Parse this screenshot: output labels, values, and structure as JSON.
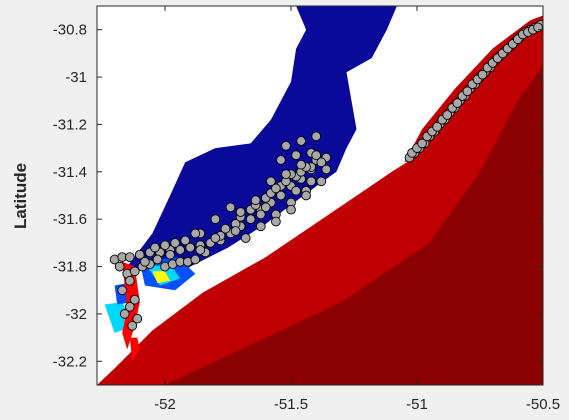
{
  "chart_data": {
    "type": "scatter",
    "title": "",
    "xlabel": "",
    "ylabel": "Latitude",
    "xlim": [
      -52.27,
      -50.5
    ],
    "ylim": [
      -32.3,
      -30.7
    ],
    "grid": false,
    "x_ticks": [
      -52,
      -51.5,
      -51,
      -50.5
    ],
    "y_ticks": [
      -30.8,
      -31,
      -31.2,
      -31.4,
      -31.6,
      -31.8,
      -32,
      -32.2
    ],
    "x_tick_labels": [
      "-52",
      "-51.5",
      "-51",
      "-50.5"
    ],
    "y_tick_labels": [
      "-30.8",
      "-31",
      "-31.2",
      "-31.4",
      "-31.6",
      "-31.8",
      "-32",
      "-32.2"
    ],
    "layers": {
      "ocean_high_colour": "#c00000",
      "ocean_deep_colour": "#8b0000",
      "plume_colour": "#0a0a9a",
      "estuary_colours": [
        "#ff0000",
        "#ffff00",
        "#00d8ff",
        "#0050ff"
      ]
    },
    "coast_line": {
      "x": [
        -52.27,
        -52.2,
        -52.05,
        -51.85,
        -51.6,
        -51.35,
        -51.1,
        -50.95,
        -50.8,
        -50.62,
        -50.5
      ],
      "y": [
        -32.3,
        -32.23,
        -32.07,
        -31.91,
        -31.76,
        -31.58,
        -31.4,
        -31.3,
        -31.13,
        -30.92,
        -30.77
      ]
    },
    "series": [
      {
        "marker": "circle",
        "marker_color": "#a8a8a8",
        "edge_color": "#000000",
        "x": [
          -52.2,
          -52.17,
          -52.14,
          -52.1,
          -52.06,
          -52.02,
          -51.98,
          -51.94,
          -51.9,
          -51.86,
          -51.82,
          -51.78,
          -51.74,
          -51.7,
          -51.66,
          -51.62,
          -51.58,
          -51.54,
          -51.5,
          -51.46,
          -51.42,
          -51.38,
          -51.84,
          -51.78,
          -51.72,
          -51.66,
          -51.6,
          -51.54,
          -51.48,
          -51.42,
          -51.76,
          -51.7,
          -51.64,
          -51.58,
          -51.52,
          -51.46,
          -51.4,
          -51.68,
          -51.62,
          -51.56,
          -51.5,
          -51.44,
          -51.38,
          -52.18,
          -52.15,
          -52.12,
          -52.09,
          -52.06,
          -52.03,
          -52.0,
          -51.97,
          -51.94,
          -51.91,
          -51.88,
          -52.17,
          -52.14,
          -52.11,
          -51.54,
          -51.48,
          -51.42,
          -51.36,
          -51.5,
          -51.44,
          -51.38,
          -51.52,
          -51.46,
          -51.4,
          -51.8,
          -51.74,
          -51.86,
          -51.92,
          -51.96,
          -52.0,
          -52.04,
          -51.72,
          -51.66,
          -51.6,
          -51.56,
          -51.5,
          -51.44,
          -51.58,
          -51.52,
          -51.46,
          -51.4,
          -52.14,
          -52.12,
          -52.16,
          -51.98,
          -51.88,
          -51.62,
          -51.56,
          -52.08,
          -52.13,
          -51.86,
          -51.8,
          -51.7,
          -51.64,
          -51.48,
          -51.42,
          -51.36
        ],
        "y": [
          -31.77,
          -31.76,
          -31.76,
          -31.75,
          -31.74,
          -31.74,
          -31.73,
          -31.73,
          -31.72,
          -31.71,
          -31.7,
          -31.69,
          -31.66,
          -31.63,
          -31.6,
          -31.56,
          -31.53,
          -31.5,
          -31.46,
          -31.43,
          -31.39,
          -31.36,
          -31.74,
          -31.67,
          -31.62,
          -31.56,
          -31.51,
          -31.46,
          -31.42,
          -31.38,
          -31.64,
          -31.59,
          -31.54,
          -31.49,
          -31.44,
          -31.4,
          -31.35,
          -31.68,
          -31.63,
          -31.58,
          -31.53,
          -31.48,
          -31.44,
          -31.8,
          -31.83,
          -31.82,
          -31.8,
          -31.79,
          -31.77,
          -31.8,
          -31.79,
          -31.78,
          -31.78,
          -31.77,
          -31.9,
          -31.97,
          -32.02,
          -31.35,
          -31.33,
          -31.32,
          -31.34,
          -31.41,
          -31.38,
          -31.36,
          -31.29,
          -31.27,
          -31.25,
          -31.6,
          -31.55,
          -31.66,
          -31.69,
          -31.7,
          -31.71,
          -31.72,
          -31.65,
          -31.6,
          -31.55,
          -31.61,
          -31.56,
          -31.5,
          -31.44,
          -31.41,
          -31.37,
          -31.33,
          -31.86,
          -31.94,
          -32.0,
          -31.75,
          -31.66,
          -31.58,
          -31.47,
          -31.78,
          -32.05,
          -31.73,
          -31.68,
          -31.57,
          -31.52,
          -31.48,
          -31.44,
          -31.39
        ]
      },
      {
        "marker": "circle",
        "marker_color": "#a8a8a8",
        "edge_color": "#000000",
        "x": [
          -51.03,
          -51.01,
          -50.99,
          -50.97,
          -50.95,
          -50.93,
          -50.91,
          -50.89,
          -50.87,
          -50.85,
          -50.83,
          -50.81,
          -50.79,
          -50.77,
          -50.75,
          -50.73,
          -50.71,
          -50.69,
          -50.67,
          -50.65,
          -50.63,
          -50.61,
          -50.59,
          -50.57,
          -50.55,
          -50.53,
          -50.51,
          -51.02,
          -51.0,
          -50.98,
          -50.96,
          -50.94,
          -50.92,
          -50.9,
          -50.88,
          -50.86,
          -50.84,
          -50.82,
          -50.8,
          -50.78,
          -50.76,
          -50.74,
          -50.72,
          -50.7,
          -50.68,
          -50.66,
          -50.64,
          -50.62,
          -50.6,
          -50.58,
          -50.56,
          -50.54,
          -50.52
        ],
        "y": [
          -31.34,
          -31.32,
          -31.3,
          -31.28,
          -31.25,
          -31.23,
          -31.2,
          -31.18,
          -31.15,
          -31.13,
          -31.1,
          -31.08,
          -31.05,
          -31.03,
          -31.0,
          -30.98,
          -30.96,
          -30.93,
          -30.91,
          -30.89,
          -30.87,
          -30.85,
          -30.83,
          -30.81,
          -30.8,
          -30.79,
          -30.78,
          -31.32,
          -31.3,
          -31.28,
          -31.25,
          -31.23,
          -31.21,
          -31.18,
          -31.16,
          -31.13,
          -31.11,
          -31.08,
          -31.06,
          -31.03,
          -31.01,
          -30.99,
          -30.96,
          -30.94,
          -30.92,
          -30.9,
          -30.88,
          -30.86,
          -30.84,
          -30.82,
          -30.81,
          -30.8,
          -30.79
        ]
      }
    ]
  }
}
